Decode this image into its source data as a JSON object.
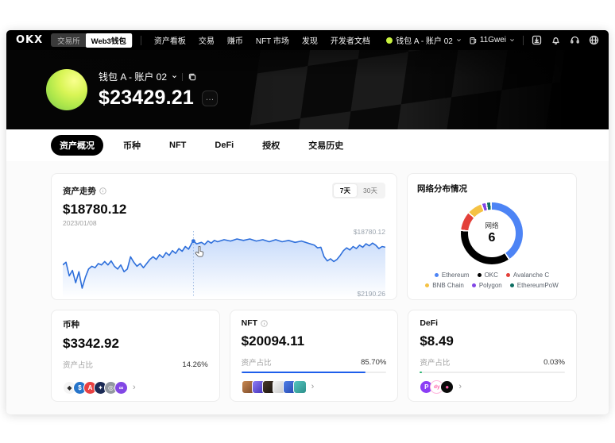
{
  "navbar": {
    "logo": "OKX",
    "mode_toggle": {
      "options": [
        "交易所",
        "Web3钱包"
      ],
      "active": "Web3钱包"
    },
    "menu": [
      "资产看板",
      "交易",
      "赚币",
      "NFT 市场",
      "发现",
      "开发者文档"
    ],
    "wallet_selector": {
      "label": "钱包 A - 账户 02",
      "dot_color": "#c9f23f"
    },
    "gas": {
      "label": "11Gwei",
      "icon": "gas-pump-icon"
    },
    "right_icons": [
      "download-icon",
      "bell-icon",
      "headset-icon",
      "globe-icon"
    ]
  },
  "hero": {
    "wallet_name": "钱包 A - 账户 02",
    "balance": "$23429.21",
    "more_label": "…"
  },
  "tabs": [
    {
      "label": "资产概况",
      "active": true
    },
    {
      "label": "币种",
      "active": false
    },
    {
      "label": "NFT",
      "active": false
    },
    {
      "label": "DeFi",
      "active": false
    },
    {
      "label": "授权",
      "active": false
    },
    {
      "label": "交易历史",
      "active": false
    }
  ],
  "overview": {
    "title": "资产走势",
    "value": "$18780.12",
    "date": "2023/01/08",
    "ranges": [
      "7天",
      "30天"
    ],
    "active_range": "7天",
    "max_label": "$18780.12",
    "min_label": "$2190.26"
  },
  "network": {
    "title": "网络分布情况"
  },
  "chart_data": [
    {
      "type": "area",
      "title": "资产走势",
      "line_color": "#2E6FDB",
      "fill_color": "#4d8bf0",
      "ylim": [
        2190.26,
        18780.12
      ],
      "y_top_label": "$18780.12",
      "y_bottom_label": "$2190.26",
      "hover": {
        "x_pct": 40.5,
        "y_pct": 17,
        "date": "2023/01/08",
        "value": "$18780.12"
      },
      "points": [
        [
          0,
          52
        ],
        [
          1,
          48
        ],
        [
          2,
          68
        ],
        [
          3,
          60
        ],
        [
          4,
          78
        ],
        [
          5,
          62
        ],
        [
          6,
          86
        ],
        [
          7,
          70
        ],
        [
          8,
          58
        ],
        [
          9,
          54
        ],
        [
          10,
          56
        ],
        [
          11,
          50
        ],
        [
          12,
          52
        ],
        [
          13,
          47
        ],
        [
          14,
          52
        ],
        [
          15,
          46
        ],
        [
          16,
          54
        ],
        [
          17,
          58
        ],
        [
          18,
          52
        ],
        [
          19,
          62
        ],
        [
          20,
          58
        ],
        [
          21,
          40
        ],
        [
          22,
          48
        ],
        [
          23,
          54
        ],
        [
          24,
          50
        ],
        [
          25,
          56
        ],
        [
          26,
          50
        ],
        [
          27,
          44
        ],
        [
          28,
          40
        ],
        [
          29,
          44
        ],
        [
          30,
          37
        ],
        [
          31,
          41
        ],
        [
          32,
          34
        ],
        [
          33,
          38
        ],
        [
          34,
          31
        ],
        [
          35,
          35
        ],
        [
          36,
          28
        ],
        [
          37,
          32
        ],
        [
          38,
          25
        ],
        [
          39,
          29
        ],
        [
          40,
          20
        ],
        [
          40.5,
          17
        ],
        [
          41.5,
          21
        ],
        [
          43,
          19
        ],
        [
          44,
          22
        ],
        [
          45,
          17
        ],
        [
          46,
          20
        ],
        [
          47,
          16
        ],
        [
          48,
          18
        ],
        [
          50,
          15
        ],
        [
          52,
          17
        ],
        [
          54,
          14
        ],
        [
          56,
          16
        ],
        [
          58,
          14
        ],
        [
          60,
          17
        ],
        [
          62,
          15
        ],
        [
          64,
          18
        ],
        [
          66,
          15
        ],
        [
          68,
          18
        ],
        [
          70,
          16
        ],
        [
          72,
          19
        ],
        [
          74,
          17
        ],
        [
          76,
          20
        ],
        [
          78,
          23
        ],
        [
          79,
          27
        ],
        [
          80,
          26
        ],
        [
          81,
          40
        ],
        [
          82,
          46
        ],
        [
          83,
          43
        ],
        [
          84,
          47
        ],
        [
          85,
          44
        ],
        [
          86,
          38
        ],
        [
          87,
          31
        ],
        [
          88,
          27
        ],
        [
          89,
          30
        ],
        [
          90,
          25
        ],
        [
          91,
          28
        ],
        [
          92,
          23
        ],
        [
          93,
          26
        ],
        [
          94,
          21
        ],
        [
          95,
          24
        ],
        [
          96,
          20
        ],
        [
          97,
          23
        ],
        [
          98,
          28
        ],
        [
          99,
          25
        ],
        [
          100,
          26
        ]
      ]
    },
    {
      "type": "pie",
      "donut": true,
      "title": "网络分布情况",
      "center_label": "网络",
      "center_value": "6",
      "legend_position": "bottom",
      "segments": [
        {
          "label": "Ethereum",
          "color": "#4D84F5",
          "pct": 41
        },
        {
          "label": "OKC",
          "color": "#000000",
          "pct": 36
        },
        {
          "label": "Avalanche C",
          "color": "#E34039",
          "pct": 10
        },
        {
          "label": "BNB Chain",
          "color": "#F5C244",
          "pct": 8
        },
        {
          "label": "Polygon",
          "color": "#8247E5",
          "pct": 2.5
        },
        {
          "label": "EthereumPoW",
          "color": "#0E6E62",
          "pct": 2.5
        }
      ]
    }
  ],
  "cards": [
    {
      "title": "币种",
      "value": "$3342.92",
      "ratio_label": "资产占比",
      "ratio": "14.26%",
      "bar_pct": 14.26,
      "bar_color": "#F0923F",
      "icons": [
        {
          "name": "eth-token-icon",
          "bg": "#f4f4f4",
          "fg": "#2b2b2b",
          "glyph": "◆"
        },
        {
          "name": "usdc-token-icon",
          "bg": "#2775CA",
          "fg": "#ffffff",
          "glyph": "$"
        },
        {
          "name": "avax-token-icon",
          "bg": "#E84142",
          "fg": "#ffffff",
          "glyph": "A"
        },
        {
          "name": "okb-token-icon",
          "bg": "#1B2A55",
          "fg": "#ffffff",
          "glyph": "✦"
        },
        {
          "name": "ethw-token-icon",
          "bg": "#9298A0",
          "fg": "#ffffff",
          "glyph": "◎"
        },
        {
          "name": "polygon-token-icon",
          "bg": "#8247E5",
          "fg": "#ffffff",
          "glyph": "∞"
        }
      ]
    },
    {
      "title": "NFT",
      "value": "$20094.11",
      "ratio_label": "资产占比",
      "ratio": "85.70%",
      "bar_pct": 85.7,
      "bar_color": "#1E5EEB",
      "has_info": true,
      "thumbs": [
        {
          "name": "nft-thumb",
          "c1": "#C98850",
          "c2": "#7A4A2A"
        },
        {
          "name": "nft-thumb",
          "c1": "#8E7CF5",
          "c2": "#4130B8"
        },
        {
          "name": "nft-thumb",
          "c1": "#4A3A2C",
          "c2": "#17110C"
        },
        {
          "name": "nft-thumb",
          "c1": "#F3F3F3",
          "c2": "#C9C9C9"
        },
        {
          "name": "nft-thumb",
          "c1": "#4F7FE8",
          "c2": "#2748AE"
        },
        {
          "name": "nft-thumb",
          "c1": "#55C6C0",
          "c2": "#2C8F8A"
        }
      ]
    },
    {
      "title": "DeFi",
      "value": "$8.49",
      "ratio_label": "资产占比",
      "ratio": "0.03%",
      "bar_pct": 1.2,
      "bar_color": "#1FB26B",
      "icons": [
        {
          "name": "defi-protocol-icon",
          "bg": "#8B3DF5",
          "fg": "#ffffff",
          "glyph": "P"
        },
        {
          "name": "defi-protocol-icon",
          "bg": "#FFFFFF",
          "fg": "#FF5CA8",
          "glyph": "dy"
        },
        {
          "name": "defi-protocol-icon",
          "bg": "#0A0A0A",
          "fg": "#FF5CA8",
          "glyph": "●"
        }
      ]
    }
  ]
}
